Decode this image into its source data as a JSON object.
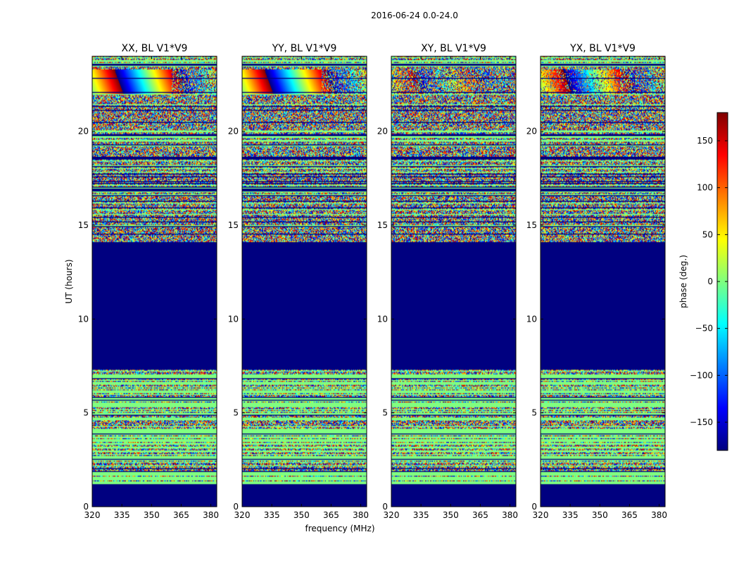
{
  "figure": {
    "suptitle": "2016-06-24 0.0-24.0",
    "xlabel": "frequency (MHz)",
    "ylabel": "UT (hours)",
    "colorbar_label": "phase (deg.)"
  },
  "chart_data": [
    {
      "type": "heatmap",
      "title": "XX, BL V1*V9",
      "xlabel": "",
      "ylabel": "UT (hours)",
      "xlim": [
        320,
        383
      ],
      "ylim": [
        0,
        24
      ],
      "xticks": [
        320,
        335,
        350,
        365,
        380
      ],
      "yticks": [
        0,
        5,
        10,
        15,
        20
      ],
      "colormap": "jet",
      "value_range": [
        -180,
        180
      ],
      "fringe_strength": 1.0
    },
    {
      "type": "heatmap",
      "title": "YY, BL V1*V9",
      "xlabel": "frequency (MHz)",
      "ylabel": "",
      "xlim": [
        320,
        383
      ],
      "ylim": [
        0,
        24
      ],
      "xticks": [
        320,
        335,
        350,
        365,
        380
      ],
      "yticks": [
        0,
        5,
        10,
        15,
        20
      ],
      "colormap": "jet",
      "value_range": [
        -180,
        180
      ],
      "fringe_strength": 1.0
    },
    {
      "type": "heatmap",
      "title": "XY, BL V1*V9",
      "xlabel": "",
      "ylabel": "",
      "xlim": [
        320,
        383
      ],
      "ylim": [
        0,
        24
      ],
      "xticks": [
        320,
        335,
        350,
        365,
        380
      ],
      "yticks": [
        0,
        5,
        10,
        15,
        20
      ],
      "colormap": "jet",
      "value_range": [
        -180,
        180
      ],
      "fringe_strength": 0.3
    },
    {
      "type": "heatmap",
      "title": "YX, BL V1*V9",
      "xlabel": "",
      "ylabel": "",
      "xlim": [
        320,
        383
      ],
      "ylim": [
        0,
        24
      ],
      "xticks": [
        320,
        335,
        350,
        365,
        380
      ],
      "yticks": [
        0,
        5,
        10,
        15,
        20
      ],
      "colormap": "jet",
      "value_range": [
        -180,
        180
      ],
      "fringe_strength": 0.7
    }
  ],
  "colorbar": {
    "label": "phase (deg.)",
    "range": [
      -180,
      180
    ],
    "ticks": [
      150,
      100,
      50,
      0,
      -50,
      -100,
      -150
    ],
    "tick_labels": [
      "150",
      "100",
      "50",
      "0",
      "−50",
      "−100",
      "−150"
    ],
    "colors": [
      "#00007f",
      "#0000ff",
      "#007fff",
      "#00ffff",
      "#7fff7f",
      "#ffff00",
      "#ff7f00",
      "#ff0000",
      "#7f0000"
    ]
  },
  "data_segments": {
    "masked_value": -180,
    "masked_ranges_hours": [
      [
        0,
        1.2
      ],
      [
        7.3,
        14.1
      ]
    ],
    "flat_ranges_hours": [
      [
        1.2,
        7.3
      ]
    ],
    "noisy_ranges_hours": [
      [
        14.1,
        22
      ]
    ],
    "fringe_range_hours": [
      22,
      23.3
    ],
    "top_noise_range_hours": [
      23.3,
      24
    ]
  }
}
